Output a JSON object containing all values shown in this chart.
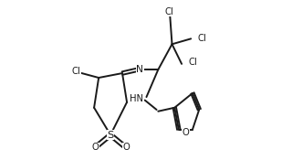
{
  "bg_color": "#ffffff",
  "line_color": "#1a1a1a",
  "line_width": 1.4,
  "font_size": 7.2,
  "figsize": [
    3.09,
    1.75
  ],
  "dpi": 100,
  "xlim": [
    0.0,
    1.0
  ],
  "ylim": [
    0.0,
    1.0
  ]
}
